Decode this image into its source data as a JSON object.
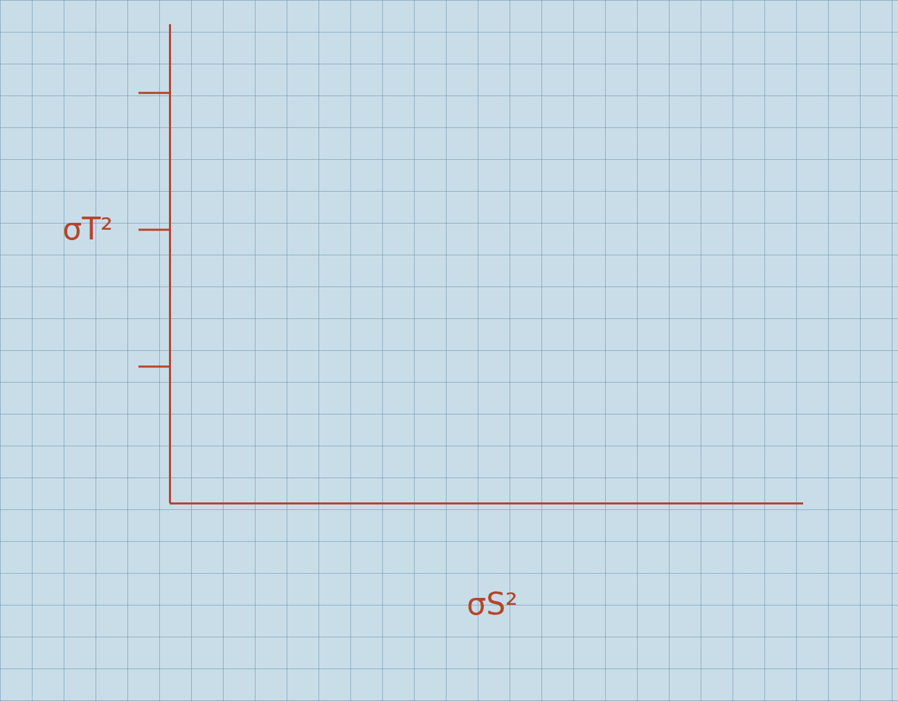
{
  "chart_data": {
    "type": "line",
    "x_label": "σS²",
    "y_label": "σT²",
    "x": [],
    "values": [],
    "color": "#b5452a",
    "xlim": [
      0,
      4.6
    ],
    "xticks": [],
    "ylim": [
      0,
      3.5
    ],
    "yticks": [
      1,
      2,
      3
    ],
    "grid": false,
    "tick_labels": false
  }
}
